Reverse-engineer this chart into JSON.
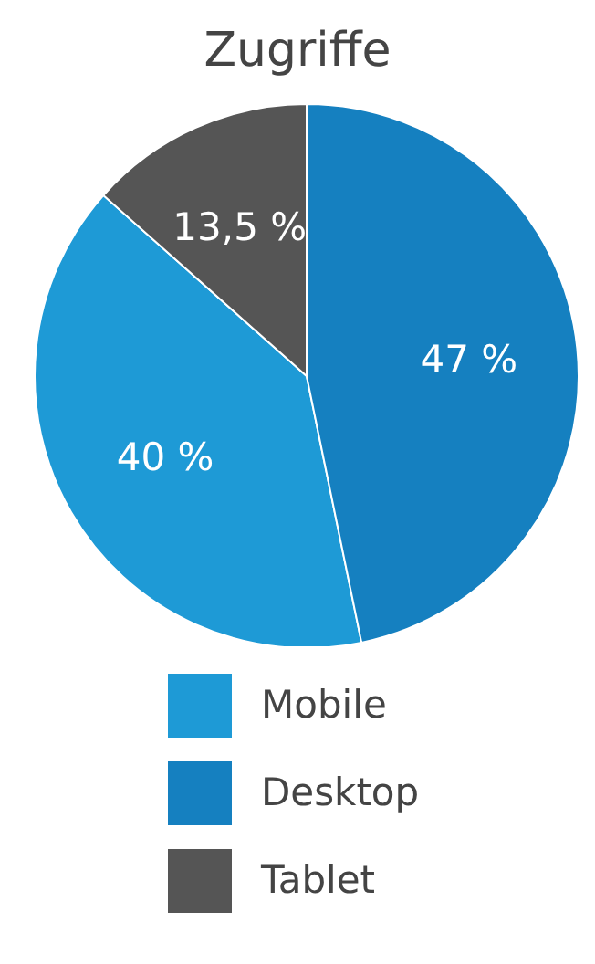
{
  "chart_data": {
    "type": "pie",
    "title": "Zugriffe",
    "categories": [
      "Mobile",
      "Desktop",
      "Tablet"
    ],
    "values": [
      40,
      47,
      13.5
    ],
    "value_labels": [
      "40 %",
      "47 %",
      "13,5 %"
    ],
    "colors": [
      "#1e9ad6",
      "#1580c0",
      "#555555"
    ],
    "legend": "bottom"
  }
}
